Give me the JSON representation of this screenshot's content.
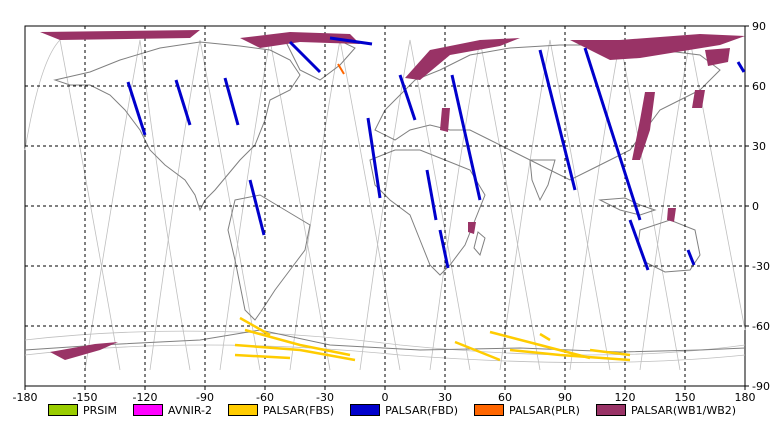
{
  "map": {
    "lon_range": [
      -180,
      180
    ],
    "lat_range": [
      -90,
      90
    ],
    "lon_ticks": [
      "-180",
      "-150",
      "-120",
      "-90",
      "-60",
      "-30",
      "0",
      "30",
      "60",
      "90",
      "120",
      "150",
      "180"
    ],
    "lat_ticks": [
      "90",
      "60",
      "30",
      "0",
      "-30",
      "-60",
      "-90"
    ],
    "colors": {
      "prsim": "#99cc00",
      "avnir2": "#ff00ff",
      "fbs": "#ffcc00",
      "fbd": "#0000cc",
      "plr": "#ff6600",
      "wb": "#993366",
      "grid": "#000000",
      "orbit": "#bfbfbf",
      "coast": "#808080"
    }
  },
  "legend": [
    {
      "label": "PRSIM",
      "color": "#99cc00"
    },
    {
      "label": "AVNIR-2",
      "color": "#ff00ff"
    },
    {
      "label": "PALSAR(FBS)",
      "color": "#ffcc00"
    },
    {
      "label": "PALSAR(FBD)",
      "color": "#0000cc"
    },
    {
      "label": "PALSAR(PLR)",
      "color": "#ff6600"
    },
    {
      "label": "PALSAR(WB1/WB2)",
      "color": "#993366"
    }
  ]
}
